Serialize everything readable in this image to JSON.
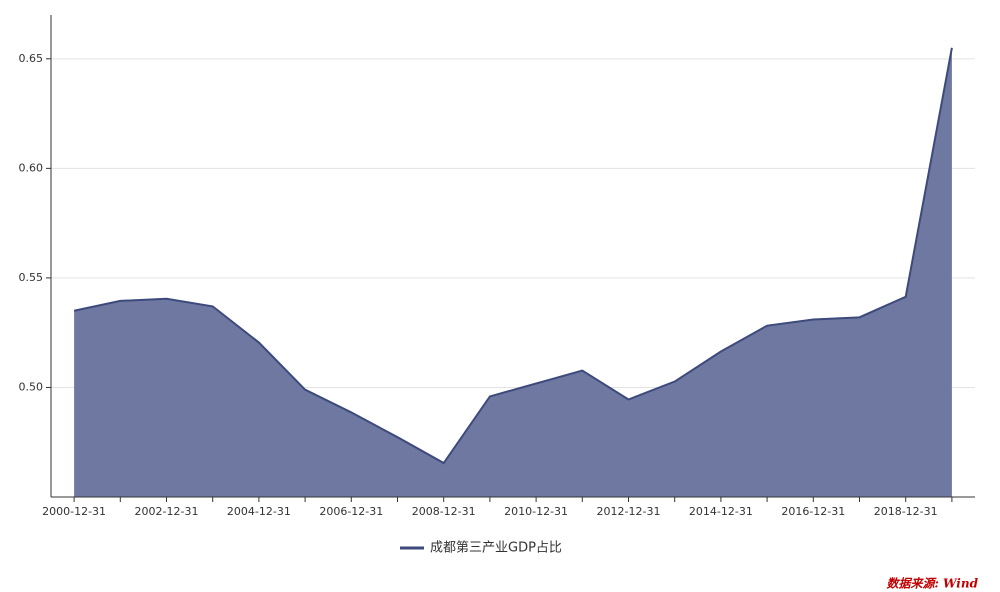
{
  "chart_data": {
    "type": "area",
    "categories": [
      "2000-12-31",
      null,
      "2002-12-31",
      null,
      "2004-12-31",
      null,
      "2006-12-31",
      null,
      "2008-12-31",
      null,
      "2010-12-31",
      null,
      "2012-12-31",
      null,
      "2014-12-31",
      null,
      "2016-12-31",
      null,
      "2018-12-31",
      null
    ],
    "series": [
      {
        "name": "成都第三产业GDP占比",
        "color": "#3d4a7c",
        "fill": "#6f78a0",
        "values": [
          0.535,
          0.5395,
          0.5405,
          0.537,
          0.5205,
          0.499,
          0.4886,
          0.4773,
          0.4655,
          0.4959,
          0.5018,
          0.5077,
          0.4945,
          0.5027,
          0.5164,
          0.5282,
          0.531,
          0.532,
          0.5414,
          0.655
        ]
      }
    ],
    "ylim": [
      0.45,
      0.67
    ],
    "yticks": [
      {
        "value": 0.5,
        "label": "0.50"
      },
      0.55,
      {
        "value": 0.6,
        "label": "0.60"
      },
      0.65
    ],
    "grid": true,
    "legend": "bottom",
    "source": "数据来源: Wind"
  }
}
